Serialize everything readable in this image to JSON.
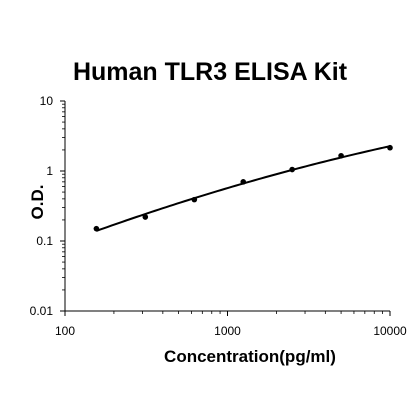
{
  "chart_data": {
    "type": "scatter",
    "title": "Human TLR3 ELISA Kit",
    "xlabel": "Concentration(pg/ml)",
    "ylabel": "O.D.",
    "x_scale": "log",
    "y_scale": "log",
    "xlim": [
      100,
      10000
    ],
    "ylim": [
      0.01,
      10
    ],
    "x_ticks": [
      "100",
      "1000",
      "10000"
    ],
    "y_ticks": [
      "0.01",
      "0.1",
      "1",
      "10"
    ],
    "grid": false,
    "legend": "none",
    "series": [
      {
        "x": [
          156,
          312,
          625,
          1250,
          2500,
          5000,
          10000
        ],
        "y": [
          0.15,
          0.22,
          0.39,
          0.7,
          1.05,
          1.65,
          2.15
        ]
      }
    ],
    "colors": {
      "points": "#000000",
      "curve": "#000000",
      "axes": "#000000"
    }
  }
}
